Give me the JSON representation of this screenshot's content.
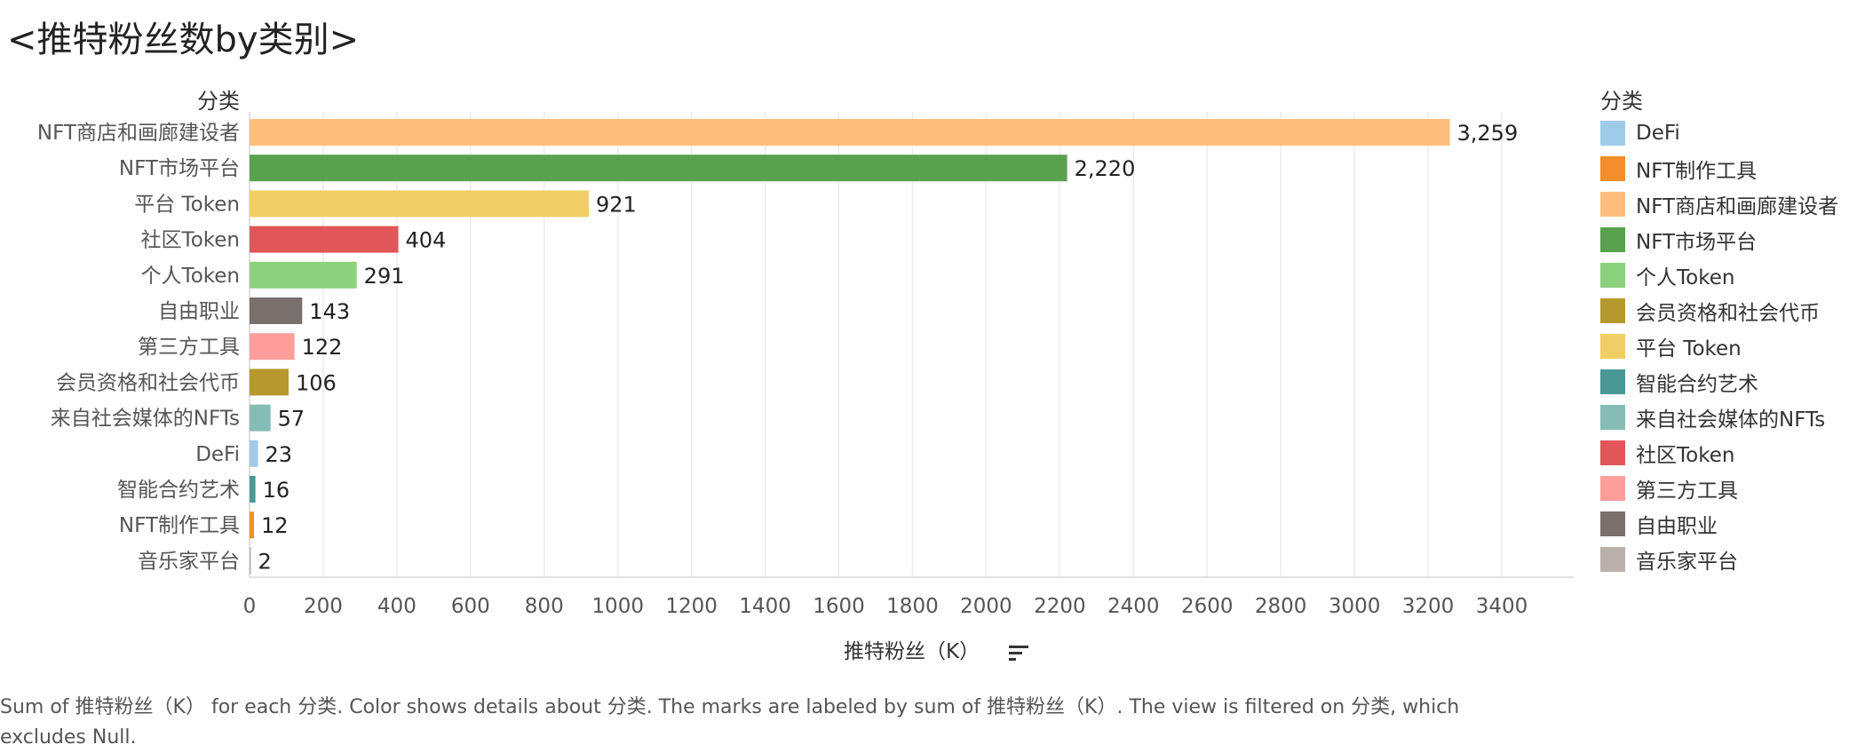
{
  "title": "<推特粉丝数by类别>",
  "category_header": "分类",
  "legend_title": "分类",
  "caption": "Sum of 推特粉丝（K） for each 分类.  Color shows details about 分类.  The marks are labeled by sum of 推特粉丝（K）. The view is filtered on 分类, which excludes Null.",
  "chart_data": {
    "type": "bar",
    "orientation": "horizontal",
    "xlabel": "推特粉丝（K）",
    "ylabel": "分类",
    "xlim": [
      0,
      3600
    ],
    "xticks": [
      0,
      200,
      400,
      600,
      800,
      1000,
      1200,
      1400,
      1600,
      1800,
      2000,
      2200,
      2400,
      2600,
      2800,
      3000,
      3200,
      3400
    ],
    "grid": true,
    "legend_position": "right",
    "categories": [
      "NFT商店和画廊建设者",
      "NFT市场平台",
      "平台 Token",
      "社区Token",
      "个人Token",
      "自由职业",
      "第三方工具",
      "会员资格和社会代币",
      "来自社会媒体的NFTs",
      "DeFi",
      "智能合约艺术",
      "NFT制作工具",
      "音乐家平台"
    ],
    "values": [
      3259,
      2220,
      921,
      404,
      291,
      143,
      122,
      106,
      57,
      23,
      16,
      12,
      2
    ],
    "value_labels": [
      "3,259",
      "2,220",
      "921",
      "404",
      "291",
      "143",
      "122",
      "106",
      "57",
      "23",
      "16",
      "12",
      "2"
    ],
    "colors": [
      "#FFBE7D",
      "#59A14F",
      "#F1CE63",
      "#E15759",
      "#8CD17D",
      "#79706E",
      "#FF9D9A",
      "#B6992D",
      "#86BCB6",
      "#A0CBE8",
      "#499894",
      "#F28E2B",
      "#BAB0AC"
    ]
  },
  "legend": [
    {
      "label": "DeFi",
      "color": "#A0CBE8"
    },
    {
      "label": "NFT制作工具",
      "color": "#F28E2B"
    },
    {
      "label": "NFT商店和画廊建设者",
      "color": "#FFBE7D"
    },
    {
      "label": "NFT市场平台",
      "color": "#59A14F"
    },
    {
      "label": "个人Token",
      "color": "#8CD17D"
    },
    {
      "label": "会员资格和社会代币",
      "color": "#B6992D"
    },
    {
      "label": "平台 Token",
      "color": "#F1CE63"
    },
    {
      "label": "智能合约艺术",
      "color": "#499894"
    },
    {
      "label": "来自社会媒体的NFTs",
      "color": "#86BCB6"
    },
    {
      "label": "社区Token",
      "color": "#E15759"
    },
    {
      "label": "第三方工具",
      "color": "#FF9D9A"
    },
    {
      "label": "自由职业",
      "color": "#79706E"
    },
    {
      "label": "音乐家平台",
      "color": "#BAB0AC"
    }
  ]
}
